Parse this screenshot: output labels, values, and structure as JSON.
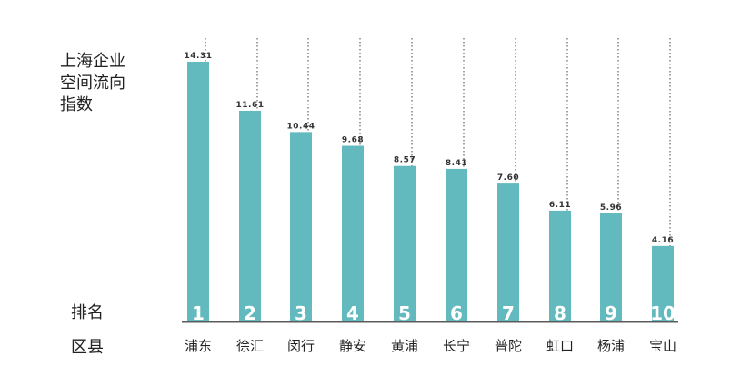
{
  "chart_data": {
    "type": "bar",
    "title_lines": [
      "上海企业",
      "空间流向",
      "指数"
    ],
    "row_labels": {
      "rank": "排名",
      "district": "区县"
    },
    "categories": [
      "浦东",
      "徐汇",
      "闵行",
      "静安",
      "黄浦",
      "长宁",
      "普陀",
      "虹口",
      "杨浦",
      "宝山"
    ],
    "ranks": [
      "1",
      "2",
      "3",
      "4",
      "5",
      "6",
      "7",
      "8",
      "9",
      "10"
    ],
    "values": [
      14.31,
      11.61,
      10.44,
      9.68,
      8.57,
      8.41,
      7.6,
      6.11,
      5.96,
      4.16
    ],
    "value_labels": [
      "14.31",
      "11.61",
      "10.44",
      "9.68",
      "8.57",
      "8.41",
      "7.60",
      "6.11",
      "5.96",
      "4.16"
    ],
    "ylim": [
      0,
      14.31
    ],
    "grid": "dotted vertical guide lines per bar",
    "colors": {
      "bar": "#62BABE",
      "axis": "#5C5C5C",
      "guide": "#444444",
      "label": "#333333",
      "rank_text": "#FFFFFF"
    }
  }
}
